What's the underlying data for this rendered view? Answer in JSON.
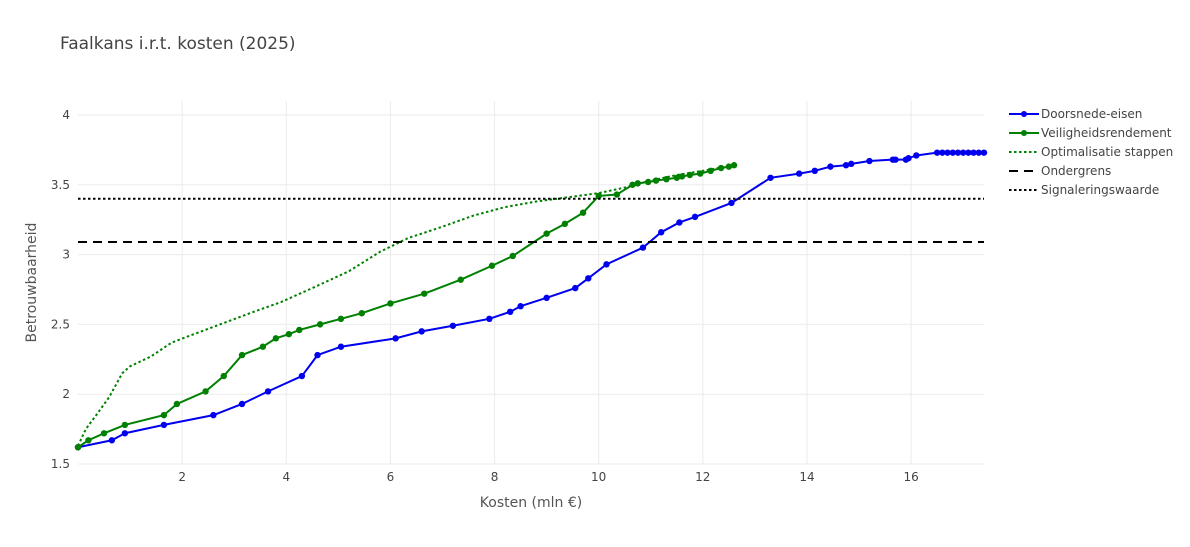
{
  "chart_data": {
    "type": "line",
    "title": "Faalkans i.r.t. kosten (2025)",
    "xlabel": "Kosten (mln €)",
    "ylabel": "Betrouwbaarheid",
    "xlim": [
      0,
      17.4
    ],
    "ylim": [
      1.5,
      4.1
    ],
    "xticks": [
      2,
      4,
      6,
      8,
      10,
      12,
      14,
      16
    ],
    "yticks": [
      1.5,
      2,
      2.5,
      3,
      3.5,
      4
    ],
    "grid": true,
    "legend_position": "right",
    "series": [
      {
        "name": "Doorsnede-eisen",
        "color": "#0000ee",
        "style": "solid-markers",
        "x": [
          0.0,
          0.65,
          0.9,
          1.65,
          2.6,
          3.15,
          3.65,
          4.3,
          4.6,
          5.05,
          6.1,
          6.6,
          7.2,
          7.9,
          8.3,
          8.5,
          9.0,
          9.55,
          9.8,
          10.15,
          10.85,
          11.2,
          11.55,
          11.85,
          12.55,
          13.3,
          13.85,
          14.15,
          14.45,
          14.75,
          14.85,
          15.2,
          15.65,
          15.7,
          15.9,
          15.95,
          16.1,
          16.5,
          16.6,
          16.7,
          16.8,
          16.9,
          17.0,
          17.1,
          17.2,
          17.3,
          17.4
        ],
        "y": [
          1.62,
          1.67,
          1.72,
          1.78,
          1.85,
          1.93,
          2.02,
          2.13,
          2.28,
          2.34,
          2.4,
          2.45,
          2.49,
          2.54,
          2.59,
          2.63,
          2.69,
          2.76,
          2.83,
          2.93,
          3.05,
          3.16,
          3.23,
          3.27,
          3.37,
          3.55,
          3.58,
          3.6,
          3.63,
          3.64,
          3.65,
          3.67,
          3.68,
          3.68,
          3.68,
          3.69,
          3.71,
          3.73,
          3.73,
          3.73,
          3.73,
          3.73,
          3.73,
          3.73,
          3.73,
          3.73,
          3.73
        ]
      },
      {
        "name": "Veiligheidsrendement",
        "color": "#008000",
        "style": "solid-markers",
        "x": [
          0.0,
          0.2,
          0.5,
          0.9,
          1.65,
          1.9,
          2.45,
          2.8,
          3.15,
          3.55,
          3.8,
          4.05,
          4.25,
          4.65,
          5.05,
          5.45,
          6.0,
          6.65,
          7.35,
          7.95,
          8.35,
          9.0,
          9.35,
          9.7,
          10.0,
          10.35,
          10.65,
          10.75,
          10.95,
          11.1,
          11.3,
          11.5,
          11.6,
          11.75,
          11.95,
          12.15,
          12.35,
          12.5,
          12.6
        ],
        "y": [
          1.62,
          1.67,
          1.72,
          1.78,
          1.85,
          1.93,
          2.02,
          2.13,
          2.28,
          2.34,
          2.4,
          2.43,
          2.46,
          2.5,
          2.54,
          2.58,
          2.65,
          2.72,
          2.82,
          2.92,
          2.99,
          3.15,
          3.22,
          3.3,
          3.42,
          3.43,
          3.5,
          3.51,
          3.52,
          3.53,
          3.54,
          3.55,
          3.56,
          3.57,
          3.58,
          3.6,
          3.62,
          3.63,
          3.64
        ]
      },
      {
        "name": "Optimalisatie stappen",
        "color": "#008000",
        "style": "dotted",
        "x": [
          0.0,
          0.15,
          0.35,
          0.6,
          0.85,
          1.0,
          1.4,
          1.8,
          2.3,
          2.8,
          3.3,
          3.9,
          4.5,
          5.2,
          5.8,
          6.35,
          6.6,
          7.0,
          7.6,
          8.2,
          8.8,
          9.4,
          10.0,
          10.5,
          11.0,
          11.5,
          12.0,
          12.6
        ],
        "y": [
          1.63,
          1.75,
          1.85,
          1.98,
          2.15,
          2.2,
          2.27,
          2.37,
          2.44,
          2.51,
          2.58,
          2.66,
          2.76,
          2.88,
          3.02,
          3.12,
          3.15,
          3.2,
          3.28,
          3.34,
          3.38,
          3.41,
          3.44,
          3.48,
          3.53,
          3.57,
          3.6,
          3.64
        ]
      },
      {
        "name": "Ondergrens",
        "color": "#000000",
        "style": "dashed",
        "x": [
          0.0,
          17.4
        ],
        "y": [
          3.09,
          3.09
        ]
      },
      {
        "name": "Signaleringswaarde",
        "color": "#000000",
        "style": "dotted",
        "x": [
          0.0,
          17.4
        ],
        "y": [
          3.4,
          3.4
        ]
      }
    ]
  }
}
